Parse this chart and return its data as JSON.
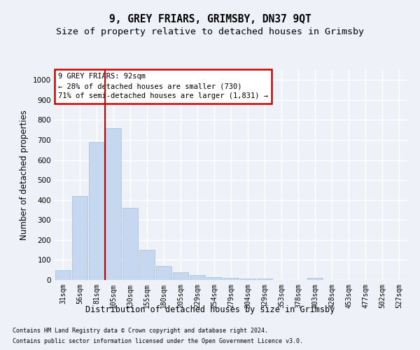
{
  "title1": "9, GREY FRIARS, GRIMSBY, DN37 9QT",
  "title2": "Size of property relative to detached houses in Grimsby",
  "xlabel": "Distribution of detached houses by size in Grimsby",
  "ylabel": "Number of detached properties",
  "categories": [
    "31sqm",
    "56sqm",
    "81sqm",
    "105sqm",
    "130sqm",
    "155sqm",
    "180sqm",
    "205sqm",
    "229sqm",
    "254sqm",
    "279sqm",
    "304sqm",
    "329sqm",
    "353sqm",
    "378sqm",
    "403sqm",
    "428sqm",
    "453sqm",
    "477sqm",
    "502sqm",
    "527sqm"
  ],
  "values": [
    50,
    420,
    690,
    760,
    360,
    150,
    70,
    40,
    25,
    15,
    12,
    8,
    8,
    0,
    0,
    10,
    0,
    0,
    0,
    0,
    0
  ],
  "bar_color": "#c5d8f0",
  "bar_edge_color": "#a0bcd8",
  "red_line_index": 2.5,
  "annotation_line1": "9 GREY FRIARS: 92sqm",
  "annotation_line2": "← 28% of detached houses are smaller (730)",
  "annotation_line3": "71% of semi-detached houses are larger (1,831) →",
  "annotation_box_color": "#ffffff",
  "annotation_box_edge": "#cc0000",
  "ylim": [
    0,
    1050
  ],
  "yticks": [
    0,
    100,
    200,
    300,
    400,
    500,
    600,
    700,
    800,
    900,
    1000
  ],
  "footer1": "Contains HM Land Registry data © Crown copyright and database right 2024.",
  "footer2": "Contains public sector information licensed under the Open Government Licence v3.0.",
  "bg_color": "#eef2f8",
  "plot_bg_color": "#eef2f8",
  "grid_color": "#ffffff",
  "title_fontsize": 10.5,
  "subtitle_fontsize": 9.5,
  "tick_fontsize": 7,
  "label_fontsize": 8.5,
  "footer_fontsize": 6,
  "annotation_fontsize": 7.5
}
